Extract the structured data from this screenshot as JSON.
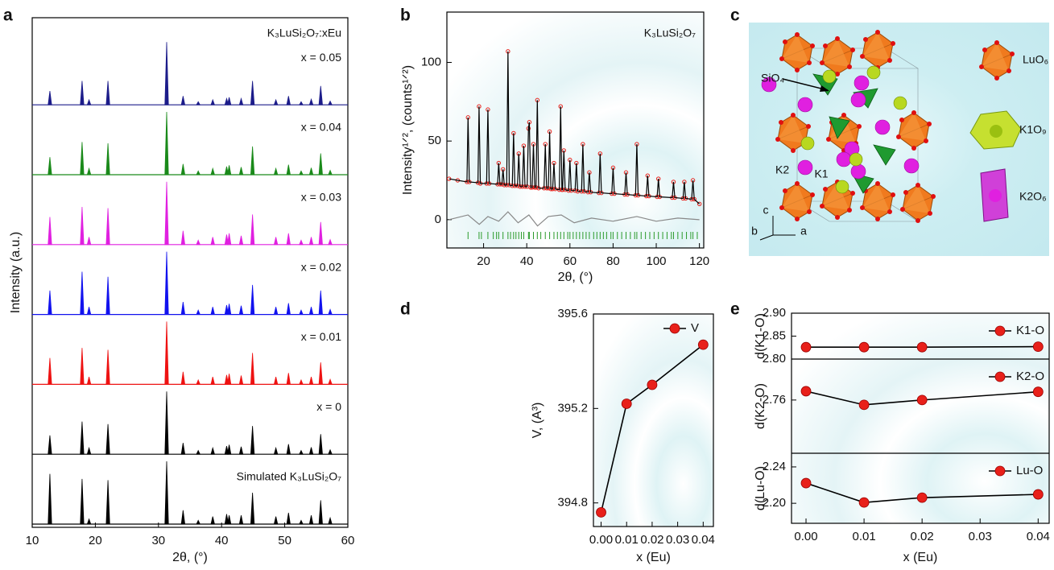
{
  "chart_data": [
    {
      "type": "stack",
      "panel_label": "a",
      "title": "K₃LuSi₂O₇:xEu",
      "xlabel": "2θ, (°)",
      "ylabel": "Intensity (a.u.)",
      "xlim": [
        10,
        60
      ],
      "xticks": [
        10,
        20,
        30,
        40,
        50,
        60
      ],
      "x": [
        12.8,
        17.9,
        19.0,
        22.0,
        31.3,
        33.9,
        36.3,
        38.6,
        40.8,
        41.2,
        43.1,
        44.9,
        48.6,
        50.6,
        52.6,
        54.2,
        55.7,
        57.2
      ],
      "series": [
        {
          "name": "x = 0.05",
          "color": "#1c1c8a",
          "values": [
            22,
            38,
            8,
            38,
            100,
            14,
            5,
            8,
            10,
            12,
            10,
            38,
            8,
            14,
            5,
            9,
            30,
            6
          ]
        },
        {
          "name": "x = 0.04",
          "color": "#1a8a1a",
          "values": [
            28,
            52,
            10,
            50,
            100,
            17,
            6,
            10,
            13,
            15,
            12,
            45,
            10,
            16,
            6,
            11,
            34,
            7
          ]
        },
        {
          "name": "x = 0.03",
          "color": "#e020e0",
          "values": [
            44,
            60,
            12,
            58,
            100,
            22,
            7,
            12,
            16,
            18,
            14,
            48,
            12,
            18,
            7,
            12,
            36,
            8
          ]
        },
        {
          "name": "x = 0.02",
          "color": "#1212ee",
          "values": [
            38,
            68,
            12,
            60,
            100,
            20,
            7,
            12,
            15,
            17,
            14,
            47,
            12,
            18,
            7,
            12,
            38,
            8
          ]
        },
        {
          "name": "x = 0.01",
          "color": "#ee1212",
          "values": [
            42,
            58,
            12,
            55,
            100,
            20,
            7,
            12,
            15,
            17,
            14,
            50,
            12,
            18,
            7,
            12,
            35,
            8
          ]
        },
        {
          "name": "x = 0",
          "color": "#000000",
          "values": [
            30,
            52,
            10,
            48,
            100,
            18,
            6,
            10,
            13,
            15,
            12,
            45,
            10,
            16,
            6,
            11,
            32,
            7
          ]
        },
        {
          "name": "Simulated K₃LuSi₂O₇",
          "color": "#000000",
          "values": [
            80,
            72,
            8,
            70,
            100,
            22,
            6,
            12,
            16,
            14,
            14,
            50,
            12,
            18,
            6,
            14,
            38,
            10
          ]
        }
      ]
    },
    {
      "type": "refinement",
      "panel_label": "b",
      "annotation": "K₃LuSi₂O₇",
      "xlabel": "2θ, (°)",
      "ylabel": "Intensity¹ᐟ², (counts¹ᐟ²)",
      "xlim": [
        3,
        122
      ],
      "ylim": [
        -18,
        132
      ],
      "xticks": [
        20,
        40,
        60,
        80,
        100,
        120
      ],
      "yticks": [
        0,
        50,
        100
      ],
      "line_color": "#000000",
      "marker_color": "#e8201a",
      "x": [
        4,
        8,
        12.3,
        12.8,
        13.4,
        17.4,
        17.9,
        18.5,
        21.4,
        22,
        22.6,
        26.5,
        27,
        27.6,
        28.5,
        29,
        29.6,
        30.7,
        31.3,
        31.9,
        33.3,
        33.9,
        34.5,
        35.7,
        36.3,
        36.9,
        38,
        38.6,
        39.2,
        40.2,
        40.8,
        41.2,
        41.8,
        42.5,
        43.1,
        43.7,
        44.3,
        44.9,
        45.5,
        48,
        48.6,
        49.2,
        50,
        50.6,
        51.2,
        52,
        52.6,
        53.2,
        55.1,
        55.7,
        56.3,
        56.6,
        57.2,
        57.8,
        59.4,
        60,
        60.6,
        62.4,
        63,
        63.6,
        65.4,
        66,
        66.6,
        68.4,
        69,
        69.6,
        73.4,
        74,
        74.6,
        79.4,
        80,
        80.6,
        85.4,
        86,
        86.6,
        90.4,
        91,
        91.6,
        95.4,
        96,
        96.6,
        100.4,
        101,
        101.6,
        107.4,
        108,
        108.6,
        112.4,
        113,
        113.6,
        116.4,
        117,
        117.6,
        120
      ],
      "values": [
        26,
        25,
        24,
        65,
        24,
        23.5,
        72,
        23,
        23,
        70,
        23,
        22.5,
        36,
        22.5,
        22.5,
        32,
        22,
        22,
        107,
        22,
        21.5,
        55,
        21.5,
        21.5,
        42,
        21,
        21,
        47,
        21,
        21,
        58,
        62,
        20.5,
        20.5,
        48,
        20.5,
        20.5,
        76,
        20,
        20,
        48,
        20,
        20,
        56,
        19.5,
        19.5,
        36,
        19.5,
        19,
        72,
        19,
        19,
        44,
        19,
        18.5,
        38,
        18.5,
        18.5,
        36,
        18,
        18,
        48,
        18,
        17.5,
        30,
        17.5,
        17,
        42,
        17,
        16.5,
        33,
        16.5,
        16,
        30,
        16,
        15.5,
        48,
        15.5,
        15,
        28,
        15,
        14.5,
        26,
        14.5,
        14,
        24,
        14,
        13.5,
        24,
        13.5,
        13,
        25,
        13,
        10
      ],
      "difference": {
        "color": "#888888",
        "x": [
          4,
          12.8,
          18,
          22,
          27,
          31.3,
          36,
          41,
          45,
          50,
          56,
          62,
          70,
          80,
          91,
          100,
          110,
          120
        ],
        "values": [
          0,
          3,
          -3,
          2,
          -1,
          5,
          -2,
          3,
          -4,
          2,
          3,
          -2,
          1,
          -1,
          2,
          -1,
          1,
          0
        ]
      },
      "bragg": {
        "color": "#2a9a2a",
        "positions": [
          12.8,
          17.9,
          19,
          22,
          24.5,
          26,
          27,
          29,
          31.3,
          32.5,
          33.9,
          35,
          36.3,
          37.5,
          38.6,
          40.8,
          41.2,
          43.1,
          44.9,
          46.5,
          48.6,
          50.6,
          52.6,
          54.2,
          55.7,
          57.2,
          59,
          60,
          61.5,
          63,
          64.5,
          66,
          67.5,
          69,
          71,
          72.5,
          74,
          75.5,
          77,
          79,
          80,
          82,
          84,
          86,
          88,
          90,
          91,
          93,
          95,
          97,
          99,
          101,
          103,
          105,
          107,
          108,
          110,
          112,
          114,
          116,
          117,
          119
        ]
      }
    },
    {
      "type": "line",
      "panel_label": "d",
      "xlabel": "x (Eu)",
      "ylabel": "V, (A³)",
      "line_color": "#000000",
      "legend": "upper right",
      "xlim": [
        -0.003,
        0.044
      ],
      "ylim": [
        394.7,
        395.6
      ],
      "xticks": [
        {
          "value": 0,
          "label": "0.00"
        },
        0.01,
        0.02,
        0.03,
        0.04
      ],
      "yticks": [
        394.8,
        395.2,
        395.6
      ],
      "x": [
        0,
        0.01,
        0.02,
        0.04
      ],
      "series": [
        {
          "name": "V",
          "color": "#e8201a",
          "values": [
            394.76,
            395.22,
            395.3,
            395.47
          ]
        }
      ]
    },
    {
      "type": "panels",
      "panel_label": "e",
      "xlabel": "x (Eu)",
      "line_color": "#000000",
      "legend": "upper right",
      "xlim": [
        -0.0025,
        0.0419
      ],
      "xticks": [
        {
          "value": 0,
          "label": "0.00"
        },
        0.01,
        0.02,
        0.03,
        0.04
      ],
      "x": [
        0,
        0.01,
        0.02,
        0.04
      ],
      "subplots": [
        {
          "ylabel": "d(K1-O)",
          "ylim": [
            2.8,
            2.9
          ],
          "yticks": [
            2.85,
            {
              "value": 2.9,
              "label": "2.90"
            }
          ],
          "series": [
            {
              "name": "K1-O",
              "color": "#e8201a",
              "values": [
                2.826,
                2.826,
                2.826,
                2.827
              ]
            }
          ]
        },
        {
          "ylabel": "d(K2-O)",
          "ylim": [
            2.708,
            2.8
          ],
          "yticks": [
            2.76,
            {
              "value": 2.8,
              "label": "2.80"
            }
          ],
          "series": [
            {
              "name": "K2-O",
              "color": "#e8201a",
              "values": [
                2.7686,
                2.7553,
                2.76,
                2.768
              ]
            }
          ]
        },
        {
          "ylabel": "d(Lu-O)",
          "ylim": [
            2.178,
            2.255
          ],
          "yticks": [
            {
              "value": 2.2,
              "label": "2.20"
            },
            2.24
          ],
          "series": [
            {
              "name": "Lu-O",
              "color": "#e8201a",
              "values": [
                2.2222,
                2.2009,
                2.2062,
                2.2098
              ]
            }
          ]
        }
      ]
    }
  ],
  "structure": {
    "panel_label": "c",
    "labels": [
      "SiO₄",
      "K2",
      "K1",
      "LuO₆",
      "K1O₉",
      "K2O₆",
      "c",
      "b",
      "a"
    ]
  }
}
